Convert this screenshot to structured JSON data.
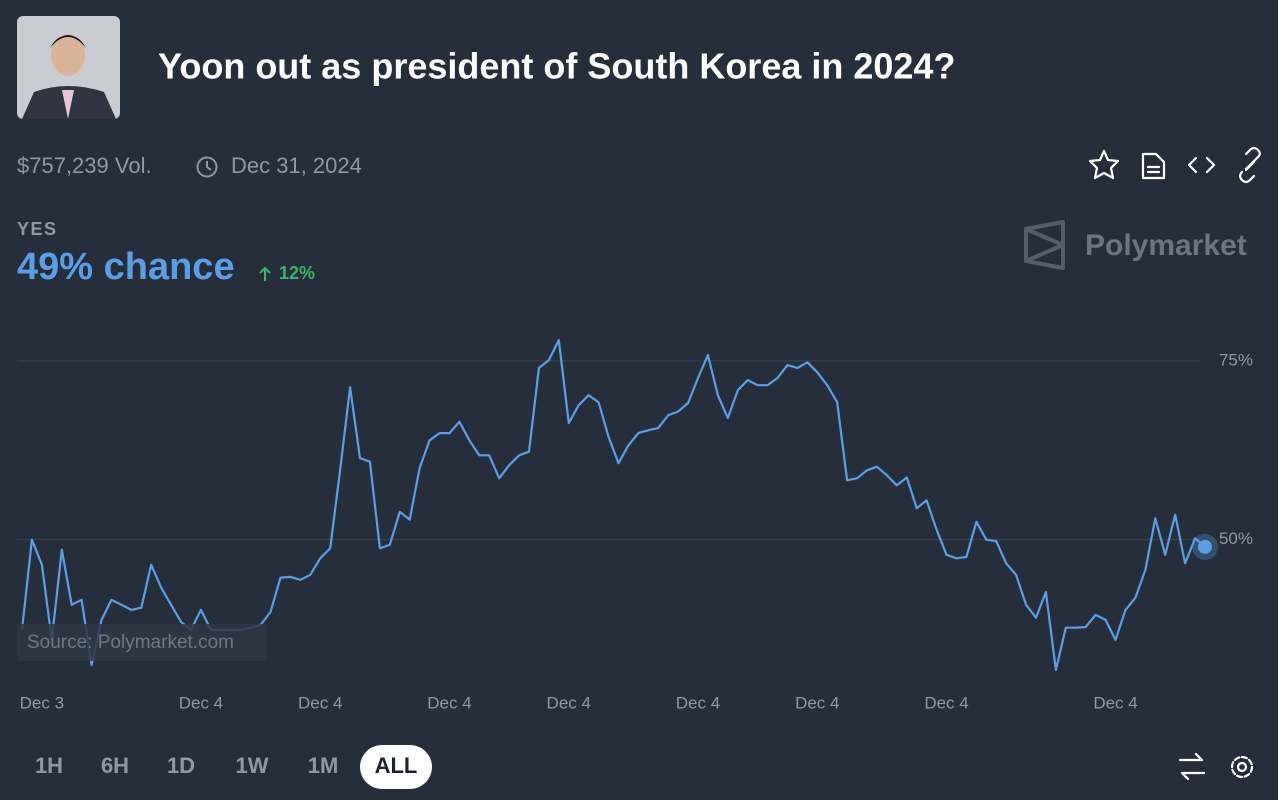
{
  "header": {
    "title": "Yoon out as president of South Korea in 2024?",
    "volume": "$757,239 Vol.",
    "end_date": "Dec 31, 2024"
  },
  "outcome": {
    "label": "YES",
    "chance": "49% chance",
    "change": "12%"
  },
  "watermark": "Polymarket",
  "chart_data": {
    "type": "line",
    "source": "Source: Polymarket.com",
    "color": "#5b9ee6",
    "values": [
      37.4,
      50,
      46.5,
      36,
      48.6,
      40.9,
      41.6,
      32.5,
      38.8,
      41.6,
      40.9,
      40.2,
      40.5,
      46.5,
      43.3,
      40.9,
      38.5,
      37.4,
      40.2,
      37.4,
      37.4,
      37.4,
      37.4,
      37.7,
      38.1,
      39.9,
      44.7,
      44.8,
      44.4,
      45.1,
      47.4,
      48.8,
      59.7,
      71.3,
      61.4,
      60.9,
      48.8,
      49.3,
      53.9,
      52.8,
      60,
      63.9,
      64.9,
      64.9,
      66.5,
      63.9,
      61.8,
      61.8,
      58.6,
      60.4,
      61.8,
      62.3,
      74,
      75.1,
      77.9,
      66.3,
      68.8,
      70.2,
      69.2,
      64.4,
      60.7,
      63.2,
      64.9,
      65.3,
      65.6,
      67.4,
      67.9,
      69.1,
      72.6,
      75.8,
      70.2,
      67,
      70.9,
      72.3,
      71.6,
      71.6,
      72.6,
      74.4,
      74,
      74.8,
      73.4,
      71.6,
      69.2,
      58.3,
      58.6,
      59.7,
      60.2,
      59,
      57.6,
      58.7,
      54.4,
      55.5,
      51.4,
      47.9,
      47.4,
      47.6,
      52.5,
      50,
      49.8,
      46.7,
      45.1,
      40.9,
      39.1,
      42.7,
      31.8,
      37.7,
      37.7,
      37.8,
      39.5,
      38.8,
      36,
      40.2,
      41.9,
      45.8,
      53,
      47.9,
      53.5,
      46.7,
      50.2,
      49
    ],
    "xlim": [
      0,
      119
    ],
    "xticks": [
      {
        "value": 2,
        "label": "Dec 3"
      },
      {
        "value": 18,
        "label": "Dec 4"
      },
      {
        "value": 30,
        "label": "Dec 4"
      },
      {
        "value": 43,
        "label": "Dec 4"
      },
      {
        "value": 55,
        "label": "Dec 4"
      },
      {
        "value": 68,
        "label": "Dec 4"
      },
      {
        "value": 80,
        "label": "Dec 4"
      },
      {
        "value": 93,
        "label": "Dec 4"
      },
      {
        "value": 110,
        "label": "Dec 4"
      }
    ],
    "ylim": [
      29,
      83.5
    ],
    "yticks": [
      {
        "value": 75,
        "label": "75%"
      },
      {
        "value": 50,
        "label": "50%"
      }
    ],
    "grid": true
  },
  "time_ranges": [
    "1H",
    "6H",
    "1D",
    "1W",
    "1M",
    "ALL"
  ],
  "selected_range": "ALL"
}
